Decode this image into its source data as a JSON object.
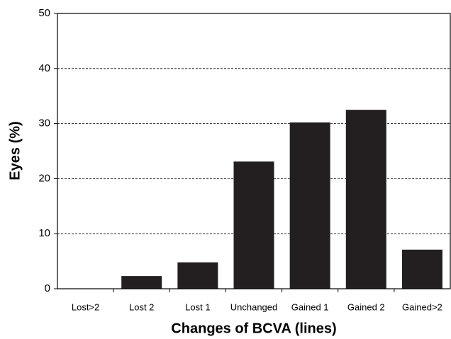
{
  "chart_data": {
    "type": "bar",
    "categories": [
      "Lost>2",
      "Lost 2",
      "Lost 1",
      "Unchanged",
      "Gained 1",
      "Gained 2",
      "Gained>2"
    ],
    "values": [
      0,
      2.3,
      4.8,
      23.1,
      30.2,
      32.5,
      7.1
    ],
    "color": "#231f20",
    "xlabel": "Changes of BCVA (lines)",
    "ylabel": "Eyes (%)",
    "ylim": [
      0,
      50
    ],
    "yticks": [
      0,
      10,
      20,
      30,
      40,
      50
    ],
    "grid": true
  }
}
